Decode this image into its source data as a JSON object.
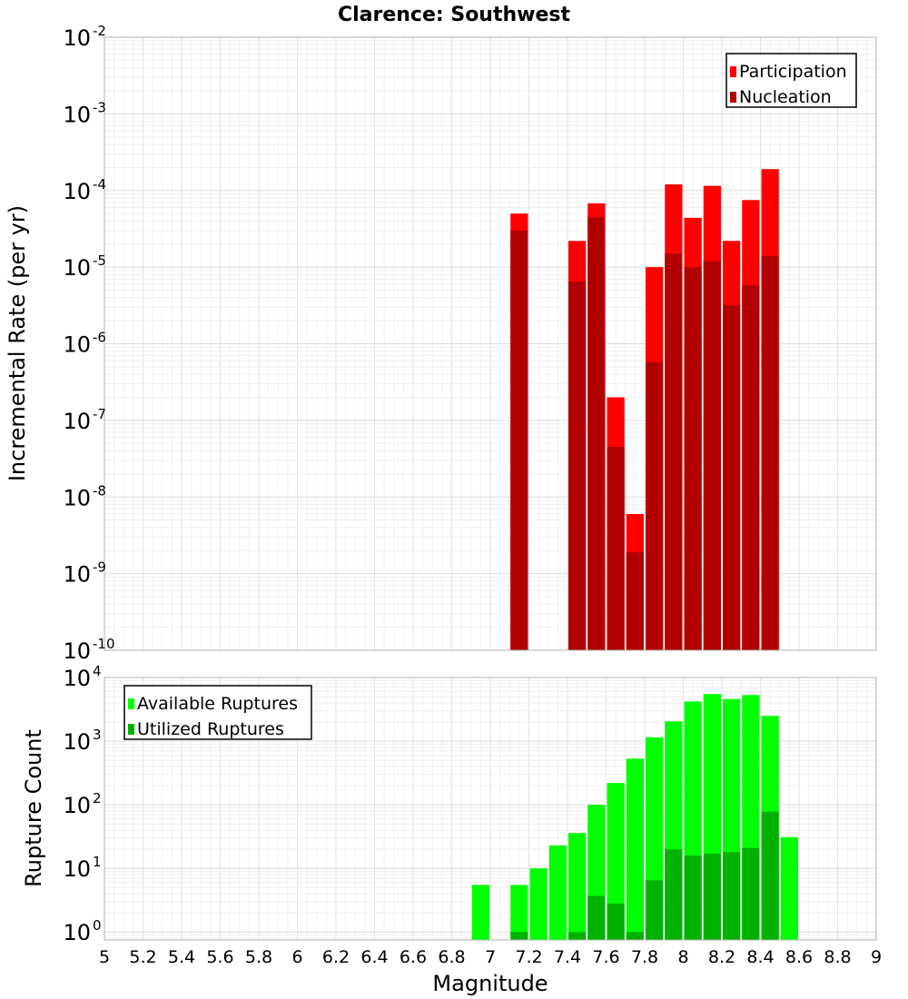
{
  "chart_data": [
    {
      "type": "bar",
      "title": "Clarence: Southwest",
      "ylabel": "Incremental Rate (per yr)",
      "xlabel": "",
      "xlim": [
        5,
        9
      ],
      "ylim": [
        1e-10,
        0.01
      ],
      "yscale": "log",
      "grid": true,
      "legend_position": "top-right",
      "bar_width": 0.1,
      "series": [
        {
          "name": "Participation",
          "color": "#ff0000",
          "x": [
            7.15,
            7.45,
            7.55,
            7.65,
            7.75,
            7.85,
            7.95,
            8.05,
            8.15,
            8.25,
            8.35,
            8.45
          ],
          "values": [
            5e-05,
            2.2e-05,
            6.8e-05,
            2e-07,
            6e-09,
            1e-05,
            0.00012,
            4.4e-05,
            0.000115,
            2.2e-05,
            7.5e-05,
            0.00019
          ]
        },
        {
          "name": "Nucleation",
          "color": "#b20000",
          "x": [
            7.15,
            7.45,
            7.55,
            7.65,
            7.75,
            7.85,
            7.95,
            8.05,
            8.15,
            8.25,
            8.35,
            8.45
          ],
          "values": [
            3e-05,
            6.5e-06,
            4.5e-05,
            4.5e-08,
            1.9e-09,
            5.8e-07,
            1.5e-05,
            1e-05,
            1.2e-05,
            3.2e-06,
            5.8e-06,
            1.4e-05
          ]
        }
      ]
    },
    {
      "type": "bar",
      "title": "",
      "ylabel": "Rupture Count",
      "xlabel": "Magnitude",
      "xlim": [
        5,
        9
      ],
      "ylim": [
        0.75,
        10000
      ],
      "yscale": "log",
      "grid": true,
      "legend_position": "top-left",
      "bar_width": 0.1,
      "series": [
        {
          "name": "Available Ruptures",
          "color": "#00ff00",
          "x": [
            6.95,
            7.15,
            7.25,
            7.35,
            7.45,
            7.55,
            7.65,
            7.75,
            7.85,
            7.95,
            8.05,
            8.15,
            8.25,
            8.35,
            8.45,
            8.55
          ],
          "values": [
            5.5,
            5.5,
            10,
            23,
            36,
            100,
            220,
            530,
            1150,
            2050,
            4200,
            5500,
            4600,
            5300,
            2500,
            31
          ]
        },
        {
          "name": "Utilized Ruptures",
          "color": "#00b200",
          "x": [
            7.15,
            7.45,
            7.55,
            7.65,
            7.75,
            7.85,
            7.95,
            8.05,
            8.15,
            8.25,
            8.35,
            8.45
          ],
          "values": [
            1,
            1,
            3.7,
            2.8,
            1,
            6.5,
            20,
            16,
            17,
            18,
            21,
            78
          ]
        }
      ]
    }
  ],
  "x_ticks": [
    "5",
    "5.2",
    "5.4",
    "5.6",
    "5.8",
    "6",
    "6.2",
    "6.4",
    "6.6",
    "6.8",
    "7",
    "7.2",
    "7.4",
    "7.6",
    "7.8",
    "8",
    "8.2",
    "8.4",
    "8.6",
    "8.8",
    "9"
  ],
  "top_y_ticks": [
    {
      "base": "10",
      "exp": "-2"
    },
    {
      "base": "10",
      "exp": "-3"
    },
    {
      "base": "10",
      "exp": "-4"
    },
    {
      "base": "10",
      "exp": "-5"
    },
    {
      "base": "10",
      "exp": "-6"
    },
    {
      "base": "10",
      "exp": "-7"
    },
    {
      "base": "10",
      "exp": "-8"
    },
    {
      "base": "10",
      "exp": "-9"
    },
    {
      "base": "10",
      "exp": "-10"
    }
  ],
  "bottom_y_ticks": [
    {
      "base": "10",
      "exp": "4"
    },
    {
      "base": "10",
      "exp": "3"
    },
    {
      "base": "10",
      "exp": "2"
    },
    {
      "base": "10",
      "exp": "1"
    },
    {
      "base": "10",
      "exp": "0"
    }
  ]
}
